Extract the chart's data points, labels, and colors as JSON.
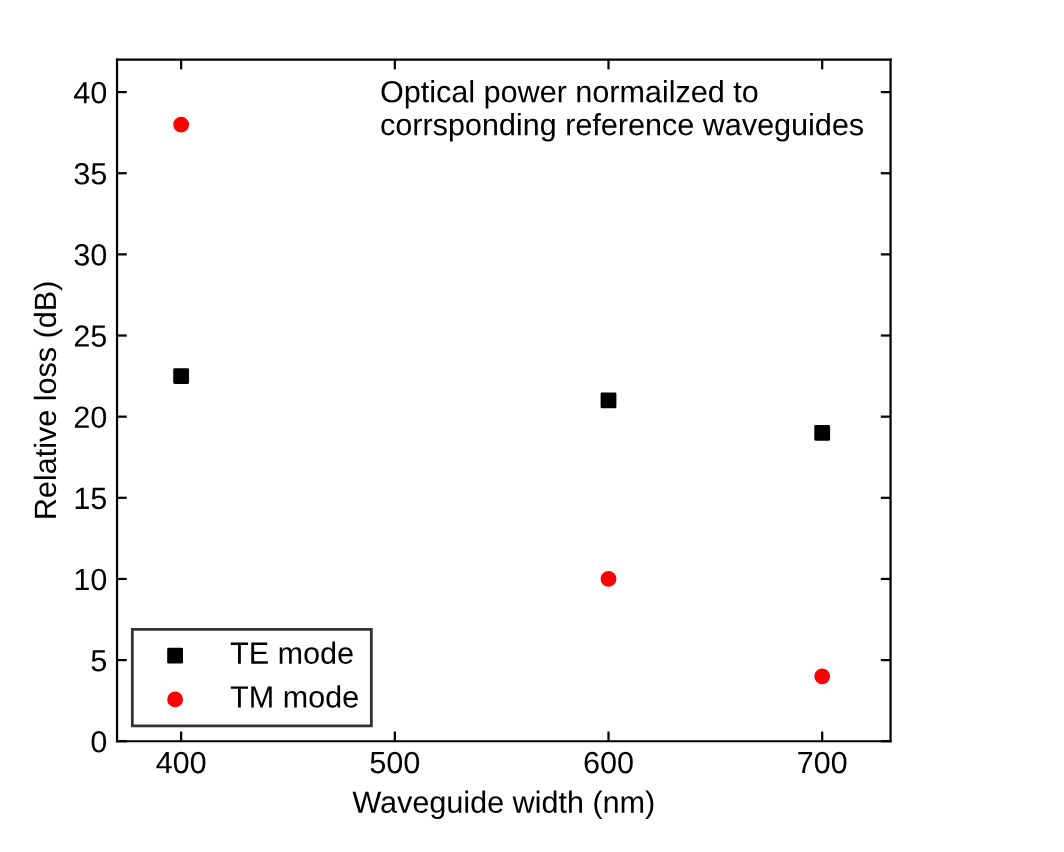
{
  "chart_data": {
    "type": "scatter",
    "xlabel": "Waveguide width (nm)",
    "ylabel": "Relative loss (dB)",
    "x": [
      400,
      600,
      700
    ],
    "series": [
      {
        "name": "TE mode",
        "color": "#000000",
        "marker": "square",
        "values": [
          22.5,
          21,
          19
        ]
      },
      {
        "name": "TM mode",
        "color": "#ff0000",
        "marker": "circle",
        "values": [
          38,
          10,
          4
        ]
      }
    ],
    "xlim": [
      370,
      732
    ],
    "ylim": [
      0,
      42
    ],
    "xticks": [
      400,
      500,
      600,
      700
    ],
    "yticks": [
      0,
      5,
      10,
      15,
      20,
      25,
      30,
      35,
      40
    ],
    "grid": false,
    "legend": "bottom left",
    "annotations": [
      "Optical power normailzed to\ncorrsponding reference waveguides"
    ]
  }
}
